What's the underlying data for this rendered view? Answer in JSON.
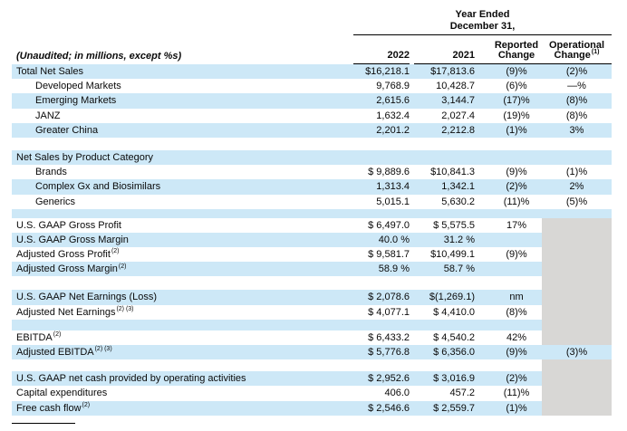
{
  "colors": {
    "row_blue": "#cde8f7",
    "gray_block": "#d8d7d5",
    "rule_black": "#000000"
  },
  "header": {
    "unaudited": "(Unaudited; in millions, except %s)",
    "year_ended": "Year Ended",
    "december_31": "December 31,",
    "columns": {
      "y2022": "2022",
      "y2021": "2021",
      "reported_line1": "Reported",
      "reported_line2": "Change",
      "operational_line1": "Operational",
      "operational_line2": "Change",
      "operational_sup": "(1)"
    }
  },
  "rows": [
    {
      "kind": "data",
      "label": "Total Net Sales",
      "sup": "",
      "indent": 0,
      "bg": "blue",
      "v2022": "$16,218.1",
      "v2021": "$17,813.6",
      "rep": "(9)%",
      "op": "(2)%",
      "op_bg": "row",
      "underline_vals": false
    },
    {
      "kind": "data",
      "label": "Developed Markets",
      "sup": "",
      "indent": 1,
      "bg": "white",
      "v2022": "9,768.9",
      "v2021": "10,428.7",
      "rep": "(6)%",
      "op": "—%",
      "op_bg": "row",
      "underline_vals": false
    },
    {
      "kind": "data",
      "label": "Emerging Markets",
      "sup": "",
      "indent": 1,
      "bg": "blue",
      "v2022": "2,615.6",
      "v2021": "3,144.7",
      "rep": "(17)%",
      "op": "(8)%",
      "op_bg": "row",
      "underline_vals": false
    },
    {
      "kind": "data",
      "label": "JANZ",
      "sup": "",
      "indent": 1,
      "bg": "white",
      "v2022": "1,632.4",
      "v2021": "2,027.4",
      "rep": "(19)%",
      "op": "(8)%",
      "op_bg": "row",
      "underline_vals": false
    },
    {
      "kind": "data",
      "label": "Greater China",
      "sup": "",
      "indent": 1,
      "bg": "blue",
      "v2022": "2,201.2",
      "v2021": "2,212.8",
      "rep": "(1)%",
      "op": "3%",
      "op_bg": "row",
      "underline_vals": false
    },
    {
      "kind": "spacer",
      "bg": "white",
      "height": 14,
      "op_bg": "row"
    },
    {
      "kind": "data",
      "label": "Net Sales by Product Category",
      "sup": "",
      "indent": 0,
      "bg": "blue",
      "v2022": "",
      "v2021": "",
      "rep": "",
      "op": "",
      "op_bg": "row",
      "underline_vals": false
    },
    {
      "kind": "data",
      "label": "Brands",
      "sup": "",
      "indent": 1,
      "bg": "white",
      "v2022": "$ 9,889.6",
      "v2021": "$10,841.3",
      "rep": "(9)%",
      "op": "(1)%",
      "op_bg": "row",
      "underline_vals": false
    },
    {
      "kind": "data",
      "label": "Complex Gx and Biosimilars",
      "sup": "",
      "indent": 1,
      "bg": "blue",
      "v2022": "1,313.4",
      "v2021": "1,342.1",
      "rep": "(2)%",
      "op": "2%",
      "op_bg": "row",
      "underline_vals": false
    },
    {
      "kind": "data",
      "label": "Generics",
      "sup": "",
      "indent": 1,
      "bg": "white",
      "v2022": "5,015.1",
      "v2021": "5,630.2",
      "rep": "(11)%",
      "op": "(5)%",
      "op_bg": "row",
      "underline_vals": false
    },
    {
      "kind": "spacer",
      "bg": "blue",
      "height": 10,
      "op_bg": "row"
    },
    {
      "kind": "data",
      "label": "U.S. GAAP Gross Profit",
      "sup": "",
      "indent": 0,
      "bg": "white",
      "v2022": "$ 6,497.0",
      "v2021": "$ 5,575.5",
      "rep": "17%",
      "op": "",
      "op_bg": "gray",
      "underline_vals": false
    },
    {
      "kind": "data",
      "label": "U.S. GAAP Gross Margin",
      "sup": "",
      "indent": 0,
      "bg": "blue",
      "v2022": "40.0 %",
      "v2021": "31.2 %",
      "rep": "",
      "op": "",
      "op_bg": "gray",
      "underline_vals": false
    },
    {
      "kind": "data",
      "label": "Adjusted Gross Profit",
      "sup": "(2)",
      "indent": 0,
      "bg": "white",
      "v2022": "$ 9,581.7",
      "v2021": "$10,499.1",
      "rep": "(9)%",
      "op": "",
      "op_bg": "gray",
      "underline_vals": false
    },
    {
      "kind": "data",
      "label": "Adjusted Gross Margin",
      "sup": "(2)",
      "indent": 0,
      "bg": "blue",
      "v2022": "58.9 %",
      "v2021": "58.7 %",
      "rep": "",
      "op": "",
      "op_bg": "gray",
      "underline_vals": false
    },
    {
      "kind": "spacer",
      "bg": "white",
      "height": 15,
      "op_bg": "gray"
    },
    {
      "kind": "data",
      "label": "U.S. GAAP Net Earnings (Loss)",
      "sup": "",
      "indent": 0,
      "bg": "blue",
      "v2022": "$ 2,078.6",
      "v2021": "$(1,269.1)",
      "rep": "nm",
      "op": "",
      "op_bg": "gray",
      "underline_vals": false
    },
    {
      "kind": "data",
      "label": "Adjusted Net Earnings",
      "sup": "(2) (3)",
      "indent": 0,
      "bg": "white",
      "v2022": "$ 4,077.1",
      "v2021": "$ 4,410.0",
      "rep": "(8)%",
      "op": "",
      "op_bg": "gray",
      "underline_vals": false
    },
    {
      "kind": "spacer",
      "bg": "blue",
      "height": 12,
      "op_bg": "gray"
    },
    {
      "kind": "data",
      "label": "EBITDA",
      "sup": "(2)",
      "indent": 0,
      "bg": "white",
      "v2022": "$ 6,433.2",
      "v2021": "$ 4,540.2",
      "rep": "42%",
      "op": "",
      "op_bg": "gray",
      "underline_vals": false
    },
    {
      "kind": "data",
      "label": "Adjusted EBITDA",
      "sup": "(2) (3)",
      "indent": 0,
      "bg": "blue",
      "v2022": "$ 5,776.8",
      "v2021": "$ 6,356.0",
      "rep": "(9)%",
      "op": "(3)%",
      "op_bg": "row",
      "underline_vals": false
    },
    {
      "kind": "spacer",
      "bg": "white",
      "height": 13,
      "op_bg": "gray"
    },
    {
      "kind": "data",
      "label": "U.S. GAAP net cash provided by operating activities",
      "sup": "",
      "indent": 0,
      "bg": "blue",
      "v2022": "$ 2,952.6",
      "v2021": "$ 3,016.9",
      "rep": "(2)%",
      "op": "",
      "op_bg": "gray",
      "underline_vals": false
    },
    {
      "kind": "data",
      "label": "Capital expenditures",
      "sup": "",
      "indent": 0,
      "bg": "white",
      "v2022": "406.0",
      "v2021": "457.2",
      "rep": "(11)%",
      "op": "",
      "op_bg": "gray",
      "underline_vals": true
    },
    {
      "kind": "data",
      "label": "Free cash flow",
      "sup": "(2)",
      "indent": 0,
      "bg": "blue",
      "v2022": "$ 2,546.6",
      "v2021": "$ 2,559.7",
      "rep": "(1)%",
      "op": "",
      "op_bg": "gray",
      "underline_vals": false
    }
  ]
}
